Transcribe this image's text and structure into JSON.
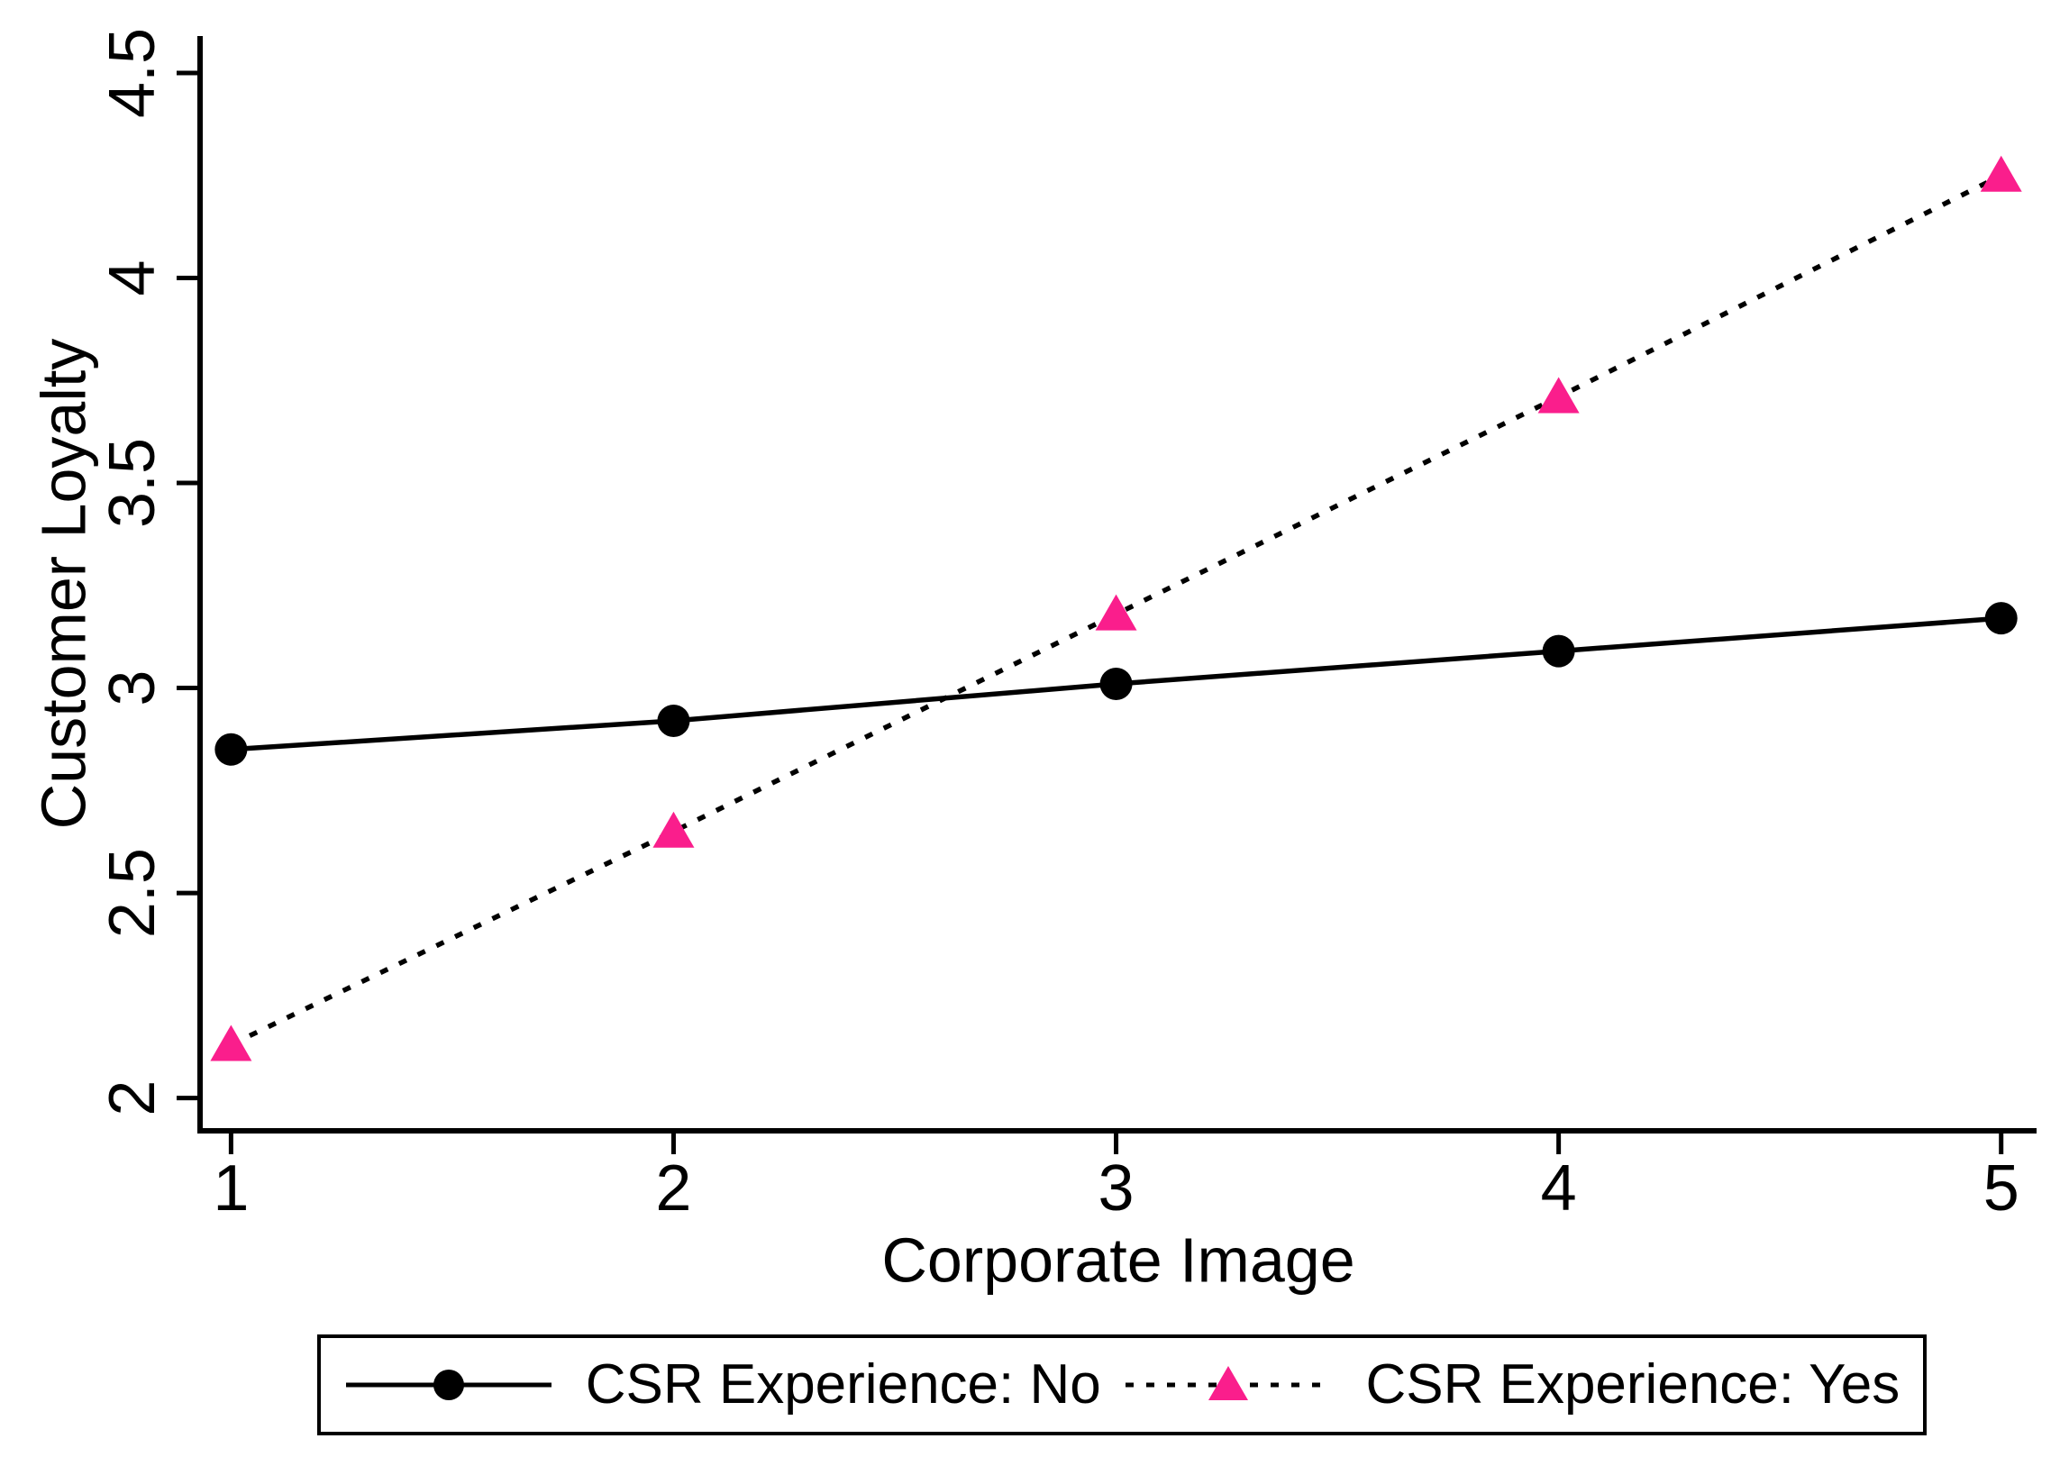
{
  "chart_data": {
    "type": "line",
    "title": "",
    "xlabel": "Corporate Image",
    "ylabel": "Customer Loyalty",
    "x": [
      1,
      2,
      3,
      4,
      5
    ],
    "x_tick_labels": [
      "1",
      "2",
      "3",
      "4",
      "5"
    ],
    "y_ticks": [
      2,
      2.5,
      3,
      3.5,
      4,
      4.5
    ],
    "xlim": [
      0.93,
      5.08
    ],
    "ylim": [
      1.92,
      4.59
    ],
    "grid": false,
    "legend_position": "bottom-outside",
    "axis_color": "#000000",
    "background_color": "#ffffff",
    "series": [
      {
        "name": "CSR Experience: No",
        "marker": "circle",
        "line_style": "solid",
        "line_color": "#000000",
        "marker_color": "#000000",
        "values": [
          2.85,
          2.92,
          3.01,
          3.09,
          3.17
        ]
      },
      {
        "name": "CSR Experience: Yes",
        "marker": "triangle",
        "line_style": "dotted",
        "line_color": "#000000",
        "marker_color": "#FA1E8C",
        "values": [
          2.13,
          2.65,
          3.18,
          3.71,
          4.25
        ]
      }
    ]
  }
}
